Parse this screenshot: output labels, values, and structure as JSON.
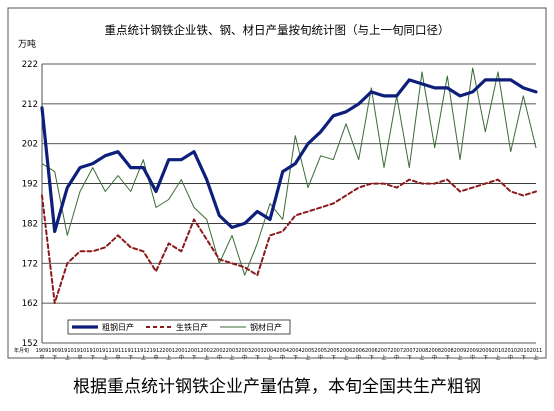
{
  "chart_data": {
    "type": "line",
    "title": "重点统计钢铁企业铁、钢、材日产量按旬统计图（与上一旬同口径）",
    "ylabel": "万吨",
    "ylim": [
      152,
      222
    ],
    "yticks": [
      152,
      162,
      172,
      182,
      192,
      202,
      212,
      222
    ],
    "grid": true,
    "legend": "bottom-left",
    "x_labels_top": [
      "1909",
      "1909",
      "1910",
      "1910",
      "1910",
      "1911",
      "1911",
      "1911",
      "1912",
      "1912",
      "2001",
      "2001",
      "2001",
      "2002",
      "2002",
      "2003",
      "2003",
      "2003",
      "2004",
      "2004",
      "2004",
      "2005",
      "2005",
      "2005",
      "2006",
      "2006",
      "2006",
      "2007",
      "2007",
      "2007",
      "2008",
      "2008",
      "2008",
      "2009",
      "2009",
      "2009",
      "2010",
      "2010",
      "2010",
      "2011"
    ],
    "x_labels_bottom": [
      "中",
      "下",
      "上",
      "中",
      "下",
      "上",
      "中",
      "下",
      "上",
      "中",
      "上",
      "中",
      "下",
      "上",
      "中",
      "上",
      "中",
      "下",
      "上",
      "中",
      "下",
      "上",
      "中",
      "下",
      "上",
      "中",
      "下",
      "上",
      "中",
      "下",
      "上",
      "中",
      "下",
      "上",
      "中",
      "下",
      "上",
      "中",
      "下",
      "上"
    ],
    "x_axis_note": "年月旬",
    "series": [
      {
        "name": "粗钢日产",
        "color": "#0d1f7a",
        "values": [
          211,
          180,
          191,
          196,
          197,
          199,
          200,
          196,
          196,
          190,
          198,
          198,
          200,
          193,
          184,
          181,
          182,
          185,
          183,
          195,
          197,
          202,
          205,
          209,
          210,
          212,
          215,
          214,
          214,
          218,
          217,
          216,
          216,
          214,
          215,
          218,
          218,
          218,
          216,
          215
        ]
      },
      {
        "name": "生铁日产",
        "color": "#8b1a1a",
        "values": [
          189,
          162,
          172,
          175,
          175,
          176,
          179,
          176,
          175,
          170,
          177,
          175,
          183,
          178,
          173,
          172,
          171,
          169,
          179,
          180,
          184,
          185,
          186,
          187,
          189,
          191,
          192,
          192,
          191,
          193,
          192,
          192,
          193,
          190,
          191,
          192,
          193,
          190,
          189,
          190
        ]
      },
      {
        "name": "钢材日产",
        "color": "#3a6b35",
        "values": [
          197,
          195,
          179,
          190,
          196,
          190,
          194,
          190,
          198,
          186,
          188,
          193,
          186,
          183,
          172,
          179,
          169,
          177,
          187,
          183,
          204,
          191,
          199,
          198,
          207,
          198,
          216,
          196,
          214,
          196,
          220,
          201,
          219,
          198,
          221,
          205,
          220,
          200,
          214,
          201
        ]
      }
    ]
  },
  "caption": "根据重点统计钢铁企业产量估算，本旬全国共生产粗钢"
}
